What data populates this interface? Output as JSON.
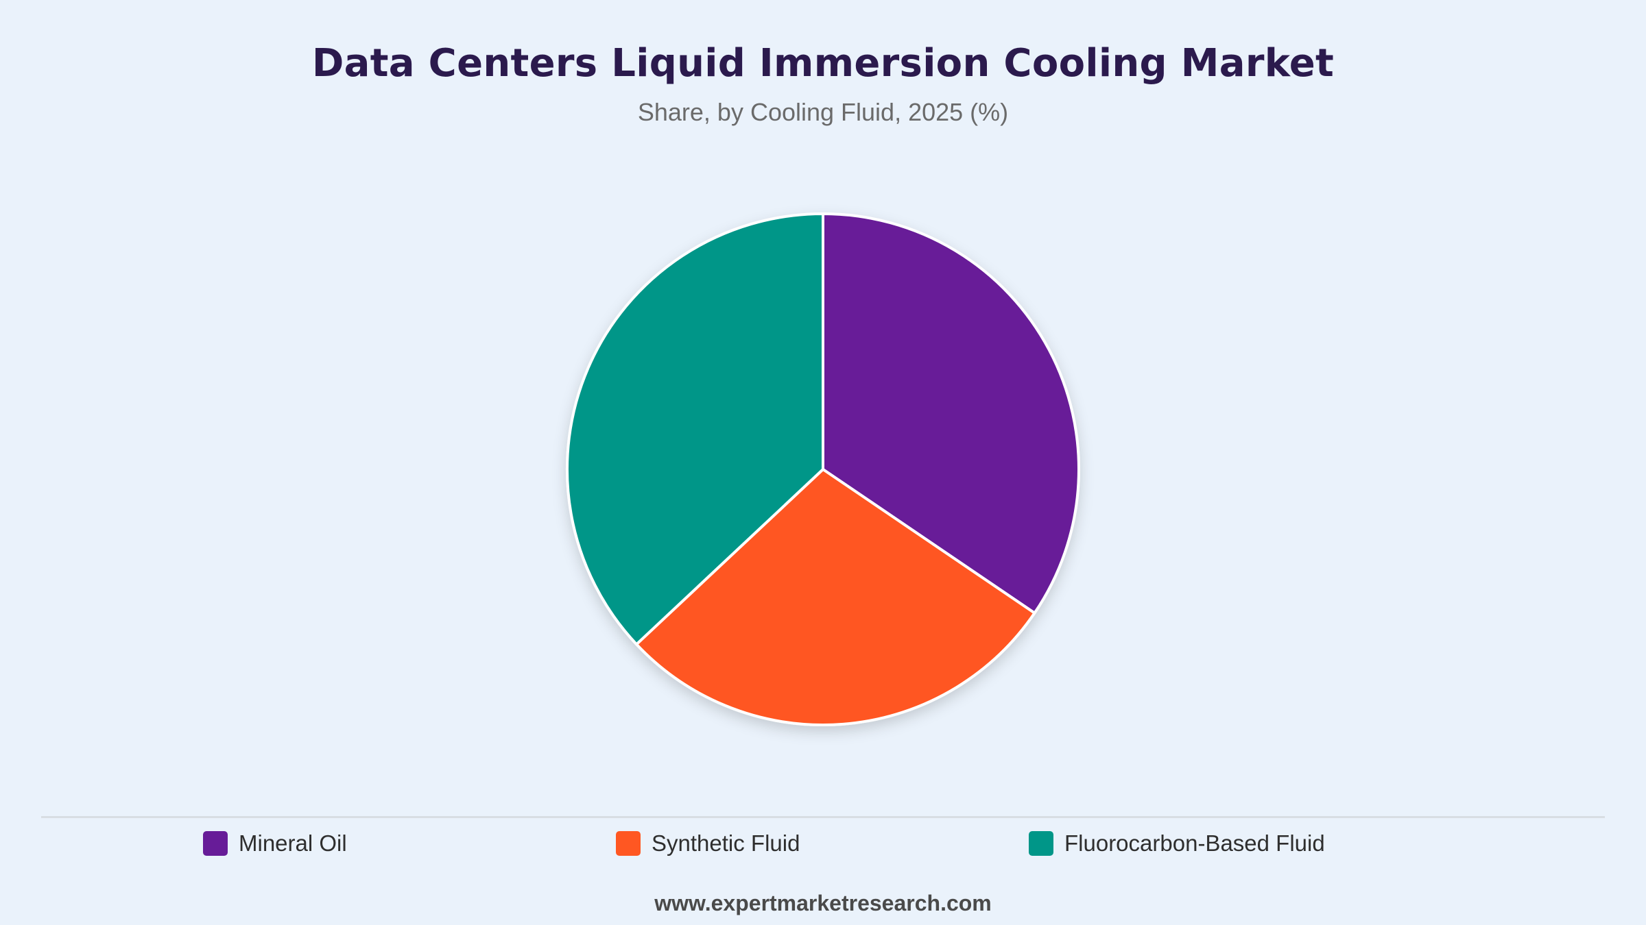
{
  "header": {
    "title": "Data Centers Liquid Immersion Cooling Market",
    "subtitle": "Share, by Cooling Fluid, 2025 (%)"
  },
  "footer": {
    "source": "www.expertmarketresearch.com"
  },
  "chart_data": {
    "type": "pie",
    "title": "Data Centers Liquid Immersion Cooling Market",
    "subtitle": "Share, by Cooling Fluid, 2025 (%)",
    "categories": [
      "Mineral Oil",
      "Synthetic Fluid",
      "Fluorocarbon-Based Fluid"
    ],
    "values": [
      34.5,
      28.5,
      37.0
    ],
    "colors": [
      "#671c98",
      "#ff5722",
      "#009688"
    ],
    "start_angle_deg": 0,
    "direction": "clockwise",
    "legend_position": "bottom"
  }
}
